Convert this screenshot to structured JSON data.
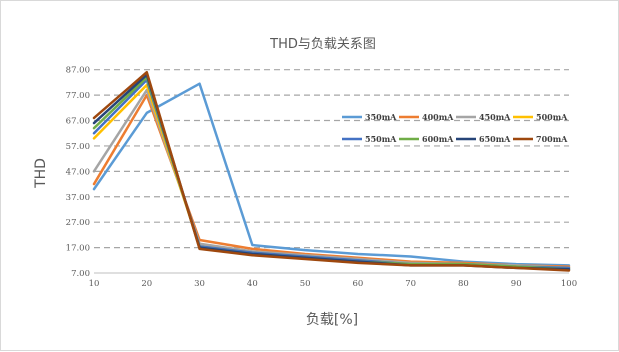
{
  "chart_data": {
    "type": "line",
    "title": "THD与负载关系图",
    "xlabel": "负载[%]",
    "ylabel": "THD",
    "x": [
      10,
      20,
      30,
      40,
      50,
      60,
      70,
      80,
      90,
      100
    ],
    "xlim": [
      10,
      100
    ],
    "ylim": [
      7,
      92
    ],
    "yticks": [
      7.0,
      17.0,
      27.0,
      37.0,
      47.0,
      57.0,
      67.0,
      77.0,
      87.0
    ],
    "ytick_labels": [
      "7.00",
      "17.00",
      "27.00",
      "37.00",
      "47.00",
      "57.00",
      "67.00",
      "77.00",
      "87.00"
    ],
    "xtick_labels": [
      "10",
      "20",
      "30",
      "40",
      "50",
      "60",
      "70",
      "80",
      "90",
      "100"
    ],
    "grid": "horizontal-dashed",
    "legend_position": "top-right",
    "series": [
      {
        "name": "350mA",
        "color": "#5b9bd5",
        "values": [
          40.0,
          70.0,
          81.5,
          18.0,
          16.0,
          14.5,
          13.5,
          11.5,
          10.5,
          10.0
        ]
      },
      {
        "name": "400mA",
        "color": "#ed7d31",
        "values": [
          42.0,
          77.0,
          20.0,
          16.5,
          14.5,
          13.0,
          11.5,
          11.0,
          10.0,
          9.5
        ]
      },
      {
        "name": "450mA",
        "color": "#a5a5a5",
        "values": [
          47.0,
          79.0,
          18.5,
          15.5,
          14.0,
          12.5,
          11.0,
          10.5,
          10.0,
          9.0
        ]
      },
      {
        "name": "500mA",
        "color": "#ffc000",
        "values": [
          60.0,
          81.0,
          17.5,
          15.0,
          13.5,
          12.0,
          10.5,
          10.5,
          9.5,
          9.0
        ]
      },
      {
        "name": "550mA",
        "color": "#4472c4",
        "values": [
          62.0,
          83.0,
          17.5,
          15.0,
          13.5,
          12.0,
          10.5,
          10.5,
          9.5,
          9.0
        ]
      },
      {
        "name": "600mA",
        "color": "#70ad47",
        "values": [
          64.0,
          84.0,
          17.0,
          14.5,
          13.0,
          11.5,
          10.5,
          10.5,
          9.5,
          8.5
        ]
      },
      {
        "name": "650mA",
        "color": "#264478",
        "values": [
          66.0,
          85.0,
          17.0,
          14.5,
          13.0,
          11.5,
          10.0,
          10.0,
          9.0,
          8.5
        ]
      },
      {
        "name": "700mA",
        "color": "#9e480e",
        "values": [
          68.0,
          86.0,
          16.5,
          14.0,
          12.5,
          11.0,
          10.0,
          10.0,
          9.0,
          8.0
        ]
      }
    ]
  }
}
